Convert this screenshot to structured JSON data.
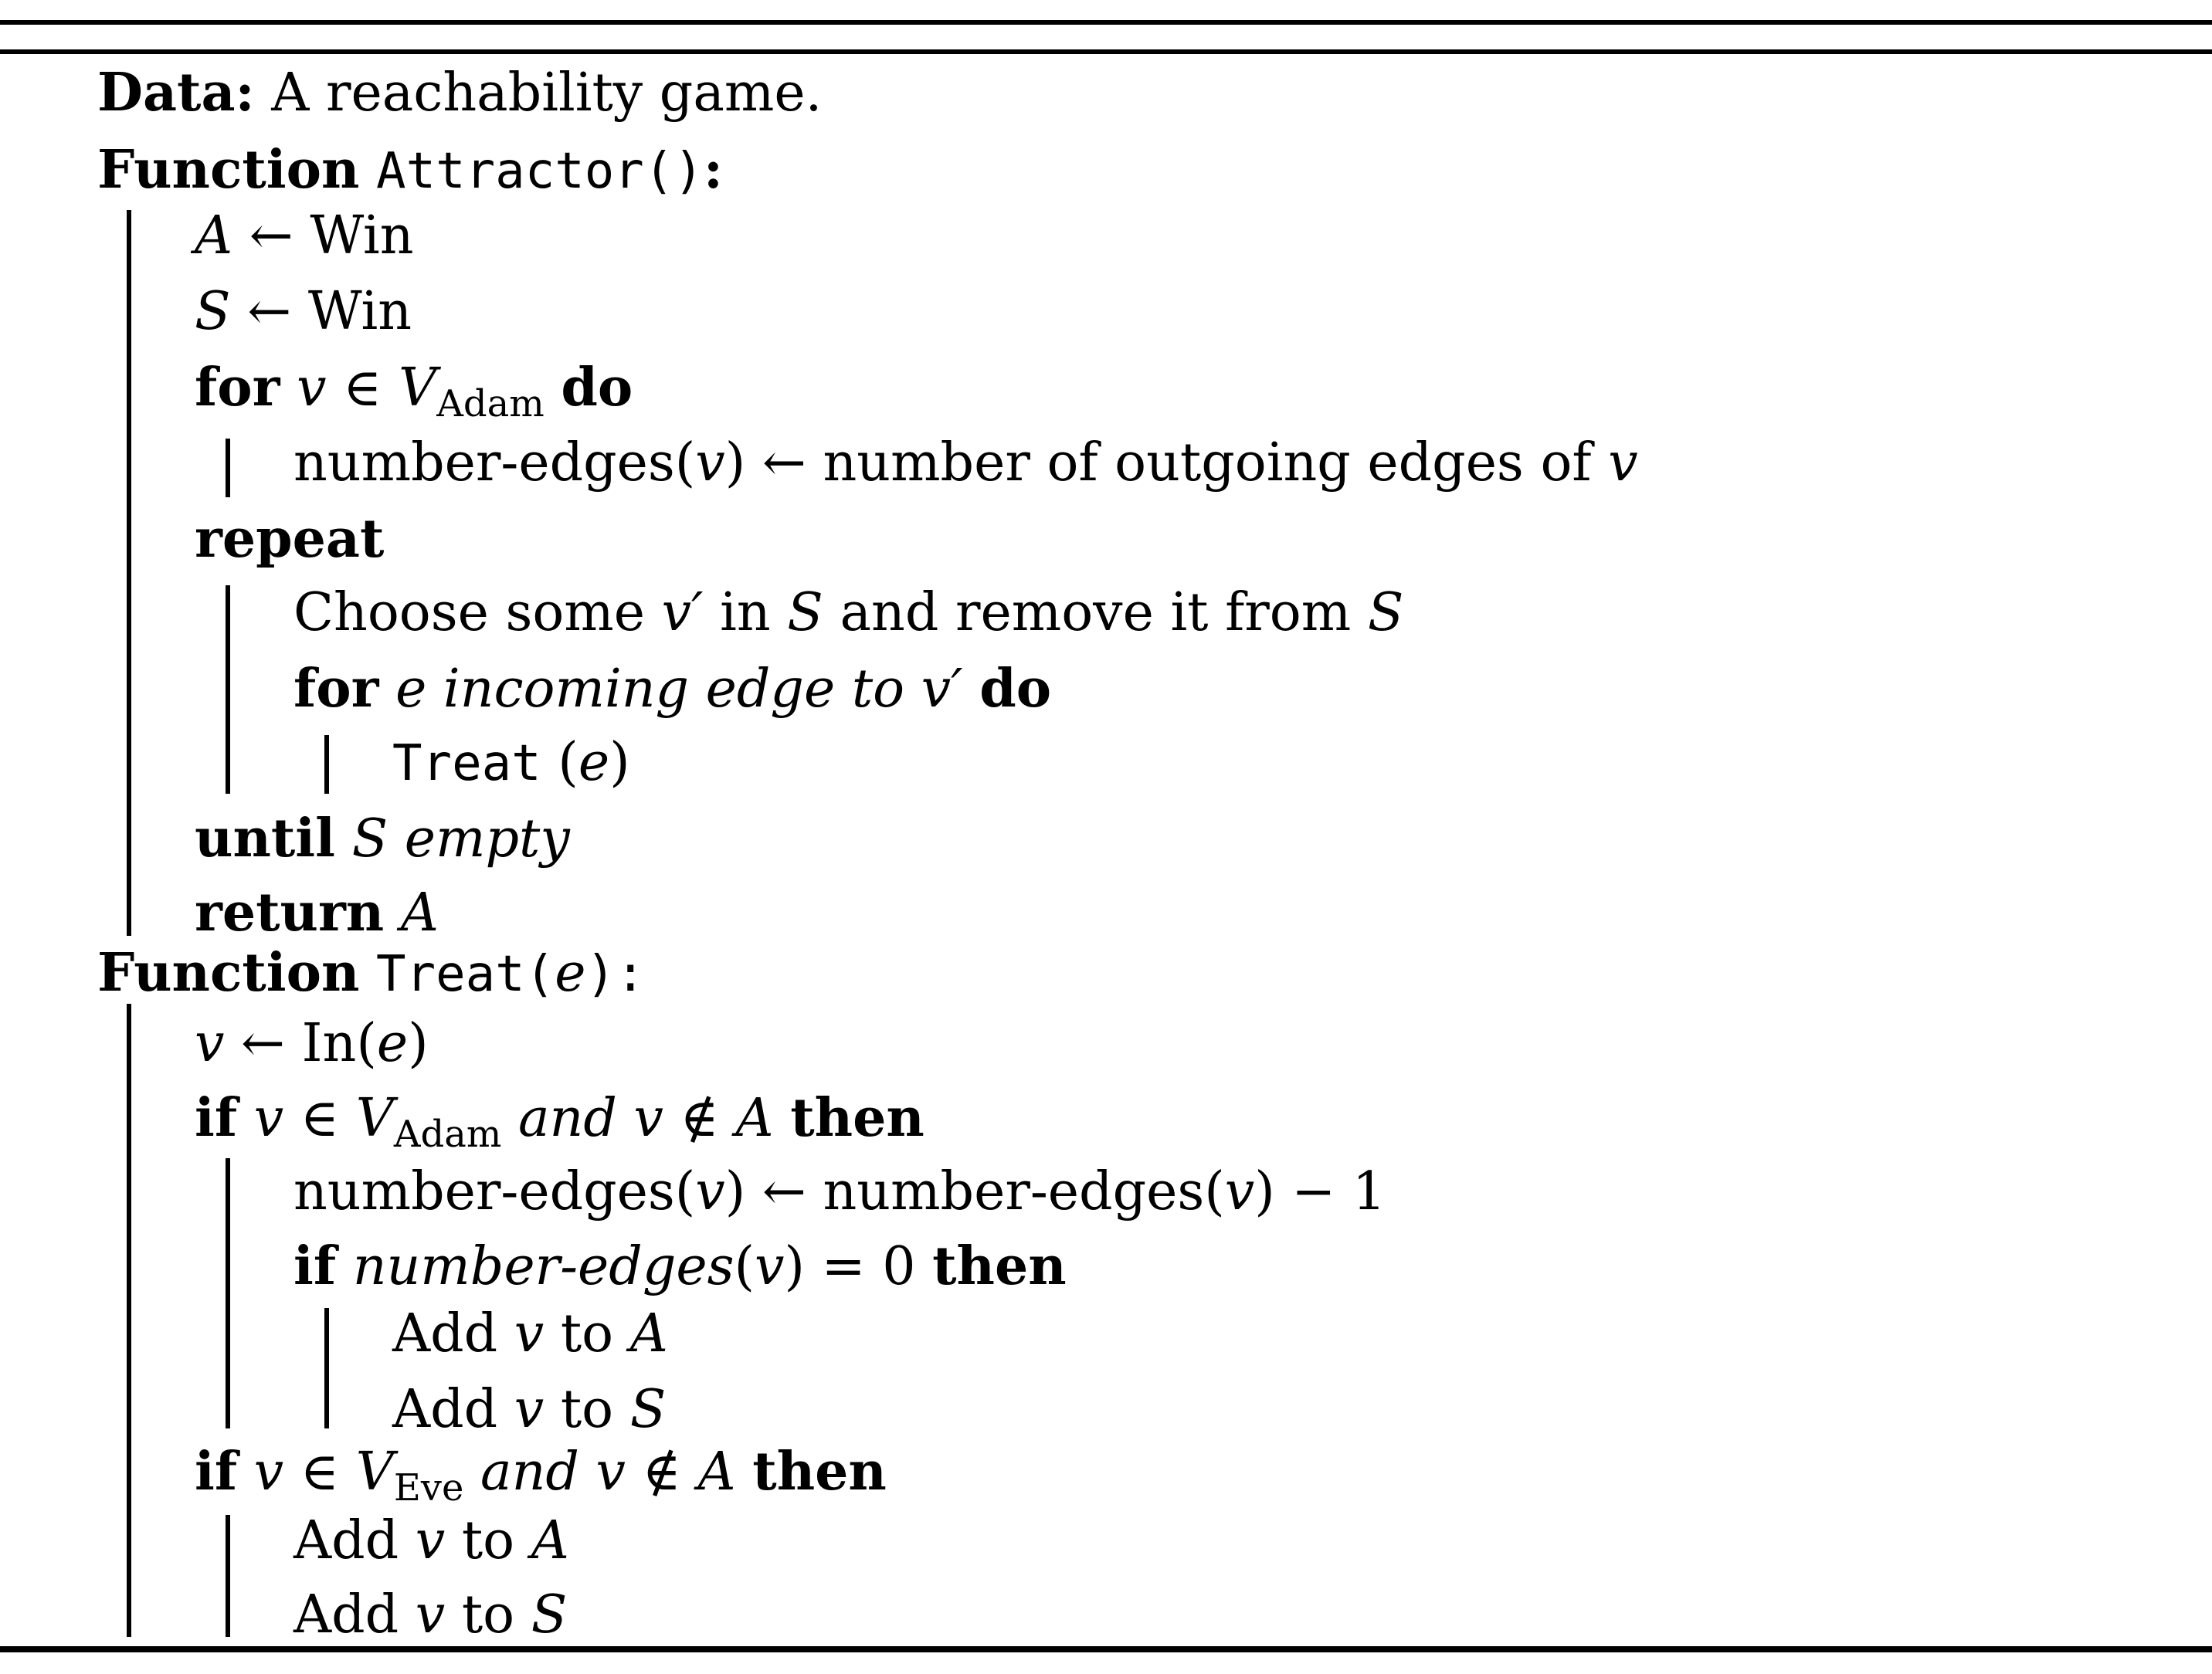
{
  "algorithm": {
    "data_line": {
      "label": "Data:",
      "text": "A reachability game."
    },
    "func_attractor": {
      "keyword": "Function",
      "name": "Attractor()",
      "colon": ":"
    },
    "attractor_body": {
      "l1": {
        "var": "A",
        "arrow": "←",
        "rhs": "Win"
      },
      "l2": {
        "var": "S",
        "arrow": "←",
        "rhs": "Win"
      },
      "for1": {
        "kw_for": "for",
        "var": "v",
        "in": "∈",
        "set": "V",
        "sub": "Adam",
        "kw_do": "do"
      },
      "for1_body": {
        "pre": "number-edges(",
        "var": "v",
        "post": ")",
        "arrow": "←",
        "text": "number of outgoing edges of",
        "var2": "v"
      },
      "repeat": "repeat",
      "choose": {
        "t1": "Choose some",
        "var": "v′",
        "t2": "in",
        "var2": "S",
        "t3": "and remove it from",
        "var3": "S"
      },
      "for2": {
        "kw_for": "for",
        "cond": "e incoming edge to",
        "var": "v′",
        "kw_do": "do"
      },
      "treat_call": {
        "name": "Treat",
        "arg_open": "(",
        "arg": "e",
        "arg_close": ")"
      },
      "until": {
        "kw": "until",
        "var": "S",
        "cond": "empty"
      },
      "ret": {
        "kw": "return",
        "var": "A"
      }
    },
    "func_treat": {
      "keyword": "Function",
      "name": "Treat(",
      "arg": "e",
      "close": "):"
    },
    "treat_body": {
      "l1": {
        "var": "v",
        "arrow": "←",
        "rhs": "In(",
        "arg": "e",
        "close": ")"
      },
      "if1": {
        "kw_if": "if",
        "var": "v",
        "in": "∈",
        "set": "V",
        "sub": "Adam",
        "and": "and",
        "var2": "v",
        "notin": "∉",
        "var3": "A",
        "kw_then": "then"
      },
      "dec": {
        "pre": "number-edges(",
        "var": "v",
        "post": ")",
        "arrow": "←",
        "pre2": "number-edges(",
        "var2": "v",
        "post2": ")",
        "minus": "−",
        "one": "1"
      },
      "if2": {
        "kw_if": "if",
        "cond": "number-edges",
        "open": "(",
        "var": "v",
        "close": ")",
        "eq": "=",
        "zero": "0",
        "kw_then": "then"
      },
      "add_a1": {
        "t": "Add",
        "var": "v",
        "to": "to",
        "var2": "A"
      },
      "add_s1": {
        "t": "Add",
        "var": "v",
        "to": "to",
        "var2": "S"
      },
      "if3": {
        "kw_if": "if",
        "var": "v",
        "in": "∈",
        "set": "V",
        "sub": "Eve",
        "and": "and",
        "var2": "v",
        "notin": "∉",
        "var3": "A",
        "kw_then": "then"
      },
      "add_a2": {
        "t": "Add",
        "var": "v",
        "to": "to",
        "var2": "A"
      },
      "add_s2": {
        "t": "Add",
        "var": "v",
        "to": "to",
        "var2": "S"
      }
    }
  }
}
